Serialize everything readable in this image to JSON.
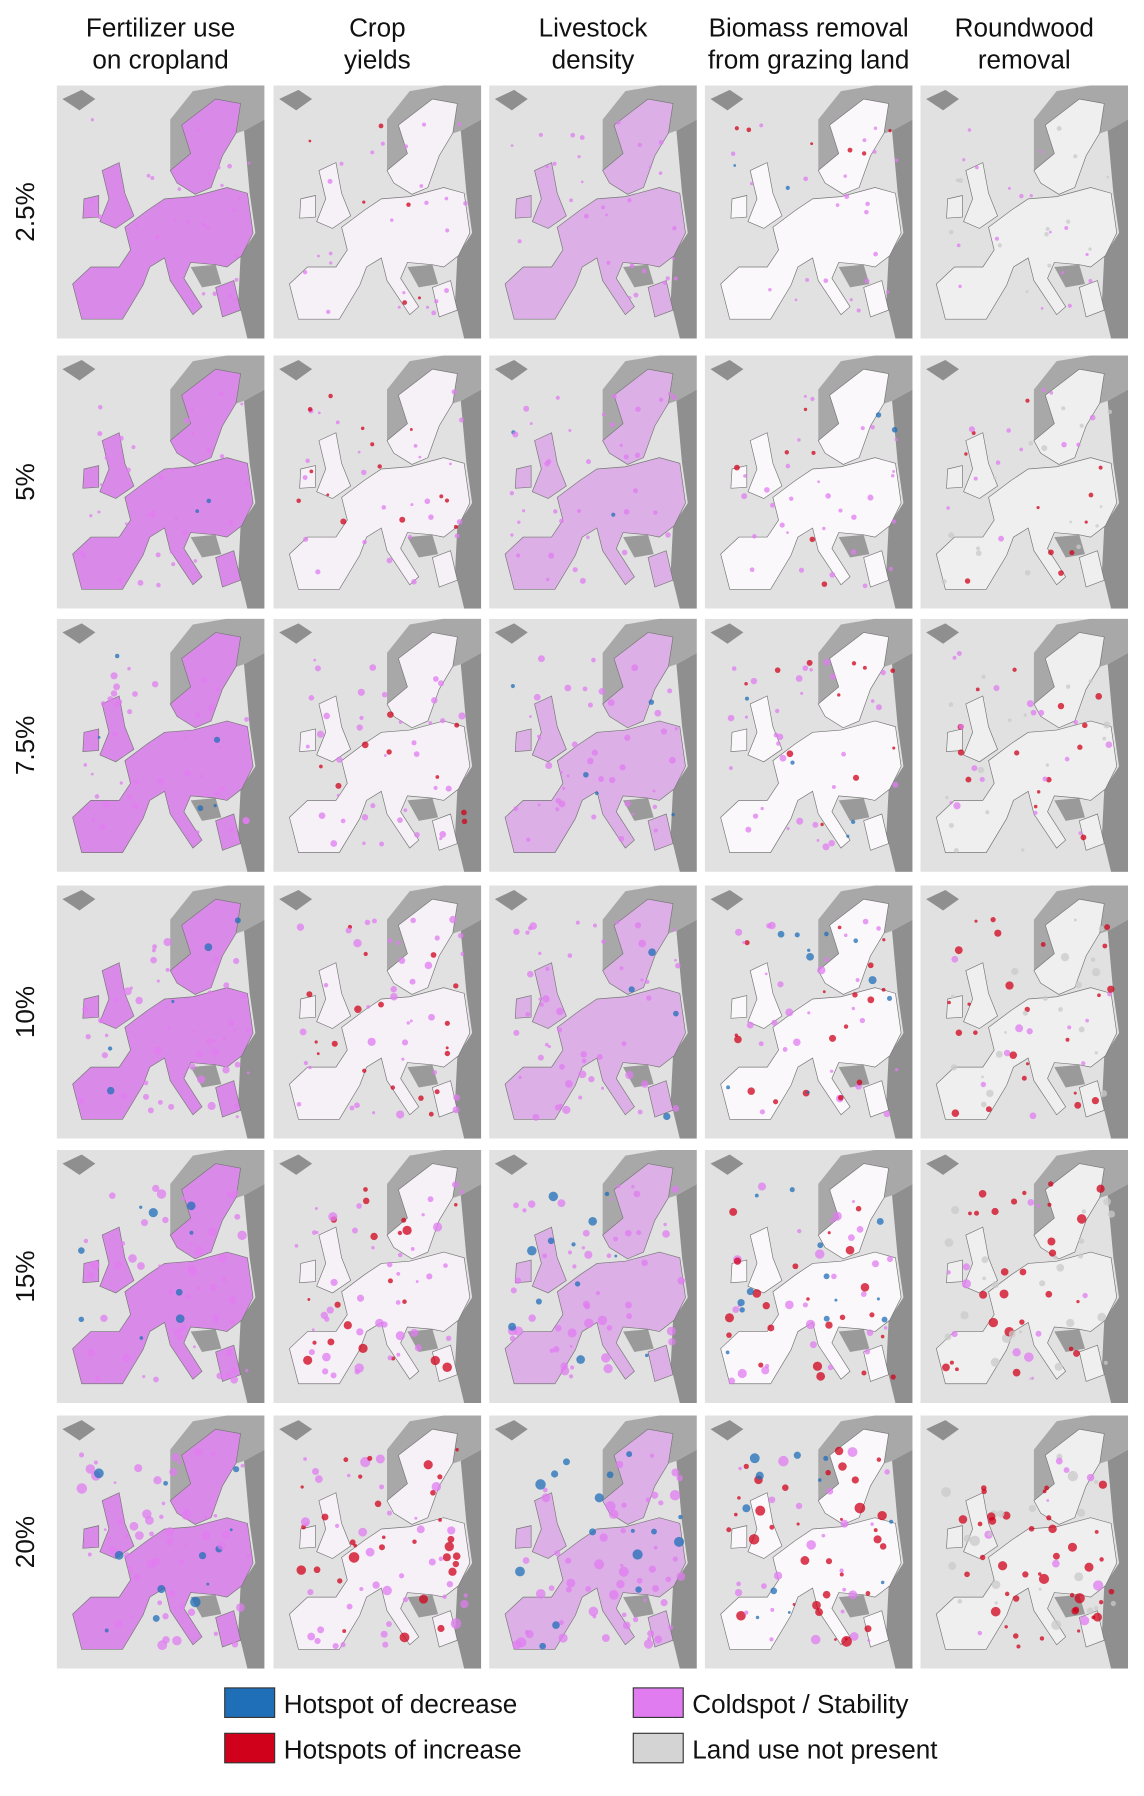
{
  "columns": [
    "Fertilizer use\non cropland",
    "Crop\nyields",
    "Livestock\ndensity",
    "Biomass removal\nfrom grazing land",
    "Roundwood\nremoval"
  ],
  "rows": [
    "2.5%",
    "5%",
    "7.5%",
    "10%",
    "15%",
    "20%"
  ],
  "legend": [
    {
      "label": "Hotspot of decrease",
      "color": "#1f6fb8"
    },
    {
      "label": "Coldspot / Stability",
      "color": "#e07cf0"
    },
    {
      "label": "Hotspots of increase",
      "color": "#d0021b"
    },
    {
      "label": "Land use not present",
      "color": "#d4d4d4"
    }
  ]
}
